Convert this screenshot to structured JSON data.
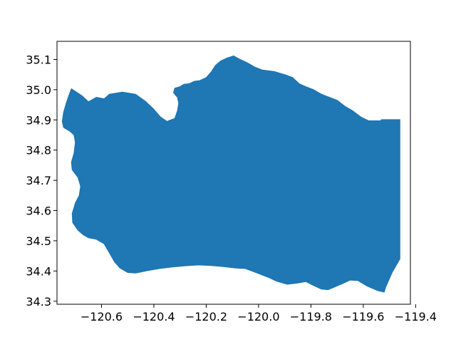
{
  "chart_data": {
    "type": "area",
    "title": "",
    "xlabel": "",
    "ylabel": "",
    "xlim": [
      -120.77,
      -119.42
    ],
    "ylim": [
      34.29,
      35.16
    ],
    "grid": false,
    "legend": "none",
    "fill_color": "#1f77b4",
    "xticks": [
      {
        "value": -120.6,
        "label": "−120.6"
      },
      {
        "value": -120.4,
        "label": "−120.4"
      },
      {
        "value": -120.2,
        "label": "−120.2"
      },
      {
        "value": -120.0,
        "label": "−120.0"
      },
      {
        "value": -119.8,
        "label": "−119.8"
      },
      {
        "value": -119.6,
        "label": "−119.6"
      },
      {
        "value": -119.4,
        "label": "−119.4"
      }
    ],
    "yticks": [
      {
        "value": 34.3,
        "label": "34.3"
      },
      {
        "value": 34.4,
        "label": "34.4"
      },
      {
        "value": 34.5,
        "label": "34.5"
      },
      {
        "value": 34.6,
        "label": "34.6"
      },
      {
        "value": 34.7,
        "label": "34.7"
      },
      {
        "value": 34.8,
        "label": "34.8"
      },
      {
        "value": 34.9,
        "label": "34.9"
      },
      {
        "value": 35.0,
        "label": "35.0"
      },
      {
        "value": 35.1,
        "label": "35.1"
      }
    ],
    "polygon": [
      [
        -120.715,
        35.003
      ],
      [
        -120.675,
        34.98
      ],
      [
        -120.65,
        34.96
      ],
      [
        -120.62,
        34.975
      ],
      [
        -120.59,
        34.97
      ],
      [
        -120.57,
        34.985
      ],
      [
        -120.52,
        34.992
      ],
      [
        -120.47,
        34.985
      ],
      [
        -120.43,
        34.96
      ],
      [
        -120.4,
        34.935
      ],
      [
        -120.375,
        34.91
      ],
      [
        -120.35,
        34.895
      ],
      [
        -120.32,
        34.905
      ],
      [
        -120.31,
        34.93
      ],
      [
        -120.305,
        34.955
      ],
      [
        -120.31,
        34.975
      ],
      [
        -120.325,
        34.99
      ],
      [
        -120.32,
        35.005
      ],
      [
        -120.3,
        35.01
      ],
      [
        -120.285,
        35.018
      ],
      [
        -120.265,
        35.02
      ],
      [
        -120.245,
        35.028
      ],
      [
        -120.225,
        35.03
      ],
      [
        -120.2,
        35.04
      ],
      [
        -120.18,
        35.06
      ],
      [
        -120.165,
        35.08
      ],
      [
        -120.145,
        35.095
      ],
      [
        -120.12,
        35.105
      ],
      [
        -120.095,
        35.112
      ],
      [
        -120.075,
        35.102
      ],
      [
        -120.045,
        35.09
      ],
      [
        -120.015,
        35.075
      ],
      [
        -119.985,
        35.065
      ],
      [
        -119.94,
        35.06
      ],
      [
        -119.9,
        35.05
      ],
      [
        -119.87,
        35.04
      ],
      [
        -119.845,
        35.02
      ],
      [
        -119.82,
        35.01
      ],
      [
        -119.79,
        35.0
      ],
      [
        -119.76,
        34.985
      ],
      [
        -119.73,
        34.975
      ],
      [
        -119.7,
        34.965
      ],
      [
        -119.67,
        34.945
      ],
      [
        -119.64,
        34.93
      ],
      [
        -119.61,
        34.91
      ],
      [
        -119.58,
        34.897
      ],
      [
        -119.535,
        34.897
      ],
      [
        -119.53,
        34.901
      ],
      [
        -119.46,
        34.901
      ],
      [
        -119.46,
        34.44
      ],
      [
        -119.47,
        34.425
      ],
      [
        -119.48,
        34.41
      ],
      [
        -119.49,
        34.395
      ],
      [
        -119.505,
        34.365
      ],
      [
        -119.515,
        34.345
      ],
      [
        -119.52,
        34.33
      ],
      [
        -119.545,
        34.335
      ],
      [
        -119.585,
        34.35
      ],
      [
        -119.62,
        34.368
      ],
      [
        -119.65,
        34.37
      ],
      [
        -119.68,
        34.358
      ],
      [
        -119.715,
        34.345
      ],
      [
        -119.735,
        34.338
      ],
      [
        -119.76,
        34.34
      ],
      [
        -119.79,
        34.352
      ],
      [
        -119.82,
        34.365
      ],
      [
        -119.85,
        34.36
      ],
      [
        -119.89,
        34.356
      ],
      [
        -119.93,
        34.366
      ],
      [
        -119.96,
        34.378
      ],
      [
        -119.99,
        34.388
      ],
      [
        -120.02,
        34.398
      ],
      [
        -120.05,
        34.408
      ],
      [
        -120.09,
        34.41
      ],
      [
        -120.13,
        34.414
      ],
      [
        -120.18,
        34.418
      ],
      [
        -120.23,
        34.42
      ],
      [
        -120.28,
        34.417
      ],
      [
        -120.33,
        34.413
      ],
      [
        -120.38,
        34.408
      ],
      [
        -120.43,
        34.4
      ],
      [
        -120.47,
        34.393
      ],
      [
        -120.5,
        34.395
      ],
      [
        -120.53,
        34.41
      ],
      [
        -120.55,
        34.43
      ],
      [
        -120.57,
        34.46
      ],
      [
        -120.59,
        34.49
      ],
      [
        -120.62,
        34.505
      ],
      [
        -120.65,
        34.51
      ],
      [
        -120.67,
        34.52
      ],
      [
        -120.69,
        34.535
      ],
      [
        -120.71,
        34.56
      ],
      [
        -120.712,
        34.59
      ],
      [
        -120.7,
        34.625
      ],
      [
        -120.685,
        34.65
      ],
      [
        -120.68,
        34.68
      ],
      [
        -120.69,
        34.71
      ],
      [
        -120.712,
        34.735
      ],
      [
        -120.715,
        34.76
      ],
      [
        -120.705,
        34.79
      ],
      [
        -120.7,
        34.825
      ],
      [
        -120.705,
        34.85
      ],
      [
        -120.72,
        34.862
      ],
      [
        -120.745,
        34.875
      ],
      [
        -120.75,
        34.895
      ],
      [
        -120.745,
        34.925
      ],
      [
        -120.735,
        34.955
      ],
      [
        -120.725,
        34.98
      ]
    ]
  }
}
